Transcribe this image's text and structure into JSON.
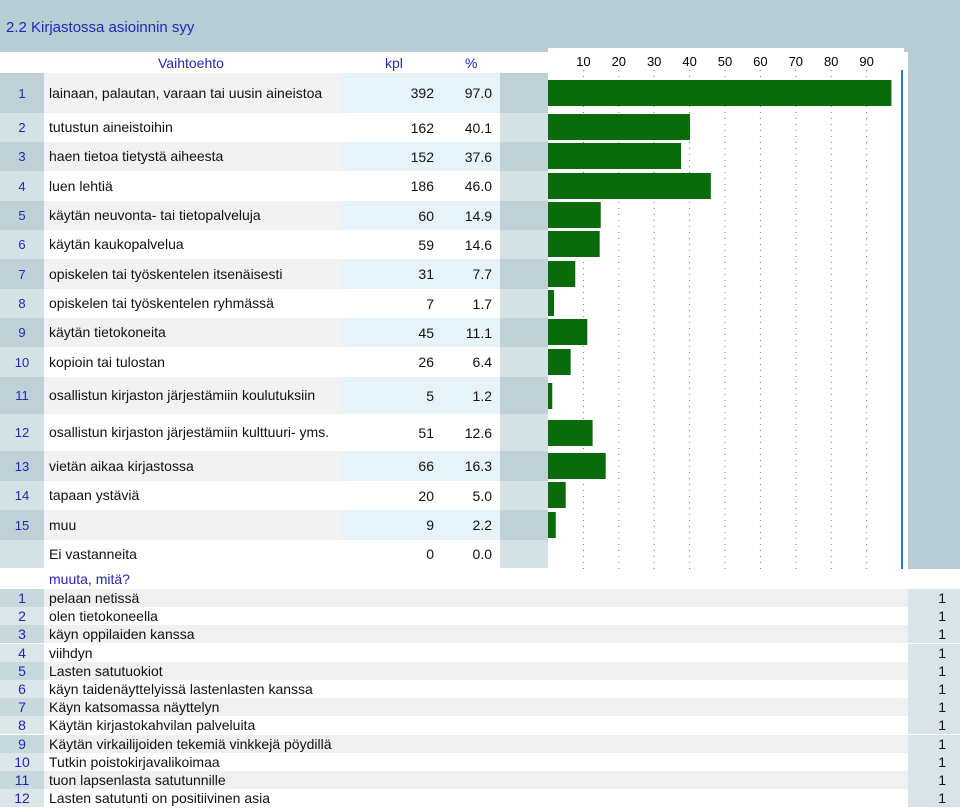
{
  "title": "2.2 Kirjastossa asioinnin syy",
  "headers": {
    "option": "Vaihtoehto",
    "count": "kpl",
    "percent": "%"
  },
  "rows": [
    {
      "num": "1",
      "label": "lainaan, palautan, varaan tai uusin aineistoa",
      "kpl": "392",
      "pct": "97.0"
    },
    {
      "num": "2",
      "label": "tutustun aineistoihin",
      "kpl": "162",
      "pct": "40.1"
    },
    {
      "num": "3",
      "label": "haen tietoa tietystä aiheesta",
      "kpl": "152",
      "pct": "37.6"
    },
    {
      "num": "4",
      "label": "luen lehtiä",
      "kpl": "186",
      "pct": "46.0"
    },
    {
      "num": "5",
      "label": "käytän neuvonta- tai tietopalveluja",
      "kpl": "60",
      "pct": "14.9"
    },
    {
      "num": "6",
      "label": "käytän kaukopalvelua",
      "kpl": "59",
      "pct": "14.6"
    },
    {
      "num": "7",
      "label": "opiskelen tai työskentelen itsenäisesti",
      "kpl": "31",
      "pct": "7.7"
    },
    {
      "num": "8",
      "label": "opiskelen tai työskentelen ryhmässä",
      "kpl": "7",
      "pct": "1.7"
    },
    {
      "num": "9",
      "label": "käytän tietokoneita",
      "kpl": "45",
      "pct": "11.1"
    },
    {
      "num": "10",
      "label": "kopioin tai tulostan",
      "kpl": "26",
      "pct": "6.4"
    },
    {
      "num": "11",
      "label": "osallistun kirjaston järjestämiin koulutuksiin",
      "kpl": "5",
      "pct": "1.2"
    },
    {
      "num": "12",
      "label": "osallistun kirjaston järjestämiin kulttuuri- yms.",
      "kpl": "51",
      "pct": "12.6"
    },
    {
      "num": "13",
      "label": "vietän aikaa kirjastossa",
      "kpl": "66",
      "pct": "16.3"
    },
    {
      "num": "14",
      "label": "tapaan ystäviä",
      "kpl": "20",
      "pct": "5.0"
    },
    {
      "num": "15",
      "label": "muu",
      "kpl": "9",
      "pct": "2.2"
    },
    {
      "num": "",
      "label": "Ei vastanneita",
      "kpl": "0",
      "pct": "0.0"
    }
  ],
  "chart_data": {
    "type": "bar",
    "orientation": "horizontal",
    "categories": [
      "1",
      "2",
      "3",
      "4",
      "5",
      "6",
      "7",
      "8",
      "9",
      "10",
      "11",
      "12",
      "13",
      "14",
      "15",
      "Ei vastanneita"
    ],
    "values": [
      97.0,
      40.1,
      37.6,
      46.0,
      14.9,
      14.6,
      7.7,
      1.7,
      11.1,
      6.4,
      1.2,
      12.6,
      16.3,
      5.0,
      2.2,
      0.0
    ],
    "xlim": [
      0,
      100
    ],
    "x_ticks": [
      10,
      20,
      30,
      40,
      50,
      60,
      70,
      80,
      90
    ],
    "grid": true,
    "bar_color": "#0a6b0a",
    "reference_line_color": "#2a7ad0"
  },
  "other_section": {
    "heading": "muuta, mitä?",
    "items": [
      {
        "num": "1",
        "text": "pelaan netissä",
        "count": "1"
      },
      {
        "num": "2",
        "text": "olen tietokoneella",
        "count": "1"
      },
      {
        "num": "3",
        "text": "käyn oppilaiden kanssa",
        "count": "1"
      },
      {
        "num": "4",
        "text": "viihdyn",
        "count": "1"
      },
      {
        "num": "5",
        "text": "Lasten satutuokiot",
        "count": "1"
      },
      {
        "num": "6",
        "text": "käyn taidenäyttelyissä lastenlasten kanssa",
        "count": "1"
      },
      {
        "num": "7",
        "text": "Käyn katsomassa näyttelyn",
        "count": "1"
      },
      {
        "num": "8",
        "text": "Käytän kirjastokahvilan palveluita",
        "count": "1"
      },
      {
        "num": "9",
        "text": "Käytän virkailijoiden tekemiä vinkkejä pöydillä",
        "count": "1"
      },
      {
        "num": "10",
        "text": "Tutkin poistokirjavalikoimaa",
        "count": "1"
      },
      {
        "num": "11",
        "text": "tuon lapsenlasta satutunnille",
        "count": "1"
      },
      {
        "num": "12",
        "text": "Lasten satutunti on positiivinen asia",
        "count": "1"
      }
    ]
  }
}
